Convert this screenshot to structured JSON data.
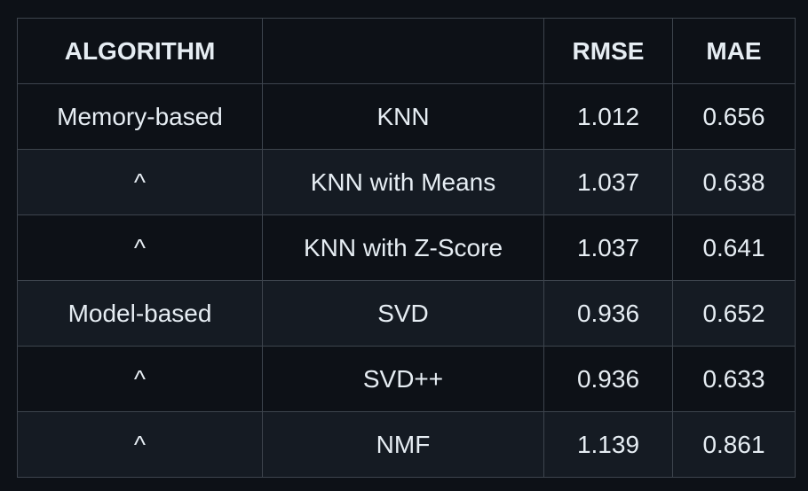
{
  "table": {
    "headers": [
      "ALGORITHM",
      "",
      "RMSE",
      "MAE"
    ],
    "rows": [
      [
        "Memory-based",
        "KNN",
        "1.012",
        "0.656"
      ],
      [
        "^",
        "KNN with Means",
        "1.037",
        "0.638"
      ],
      [
        "^",
        "KNN with Z-Score",
        "1.037",
        "0.641"
      ],
      [
        "Model-based",
        "SVD",
        "0.936",
        "0.652"
      ],
      [
        "^",
        "SVD++",
        "0.936",
        "0.633"
      ],
      [
        "^",
        "NMF",
        "1.139",
        "0.861"
      ]
    ]
  }
}
